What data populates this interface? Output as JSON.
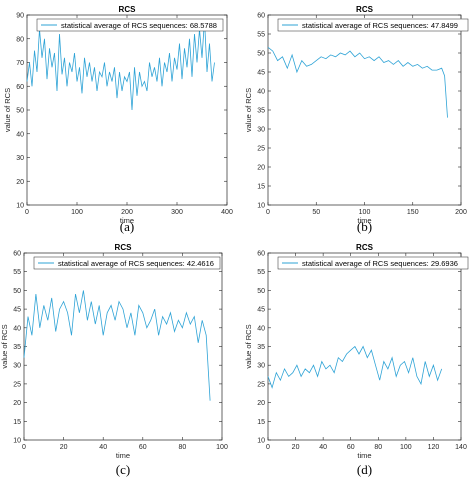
{
  "colors": {
    "line": "#2ea3d6",
    "axis": "#262626",
    "legend_border": "#262626"
  },
  "chart_data": [
    {
      "type": "line",
      "panel_label": "(a)",
      "title": "RCS",
      "xlabel": "time",
      "ylabel": "value of RCS",
      "xlim": [
        0,
        400
      ],
      "ylim": [
        10,
        90
      ],
      "xticks": [
        0,
        100,
        200,
        300,
        400
      ],
      "yticks": [
        10,
        20,
        30,
        40,
        50,
        60,
        70,
        80,
        90
      ],
      "legend": "statistical average of RCS sequences: 68.5788",
      "legend_position": "top",
      "grid": false,
      "series": [
        {
          "x": [
            0,
            5,
            10,
            15,
            20,
            25,
            30,
            35,
            40,
            45,
            50,
            55,
            60,
            65,
            70,
            75,
            80,
            85,
            90,
            95,
            100,
            105,
            110,
            115,
            120,
            125,
            130,
            135,
            140,
            145,
            150,
            155,
            160,
            165,
            170,
            175,
            180,
            185,
            190,
            195,
            200,
            205,
            210,
            215,
            220,
            225,
            230,
            235,
            240,
            245,
            250,
            255,
            260,
            265,
            270,
            275,
            280,
            285,
            290,
            295,
            300,
            305,
            310,
            315,
            320,
            325,
            330,
            335,
            340,
            345,
            350,
            355,
            360,
            365,
            370,
            375
          ],
          "y": [
            62,
            70,
            60,
            75,
            66,
            84,
            72,
            80,
            63,
            76,
            68,
            74,
            58,
            82,
            65,
            72,
            60,
            70,
            66,
            74,
            62,
            68,
            57,
            72,
            64,
            70,
            62,
            68,
            58,
            66,
            64,
            70,
            60,
            66,
            62,
            68,
            55,
            66,
            58,
            64,
            62,
            66,
            50,
            68,
            56,
            66,
            60,
            62,
            58,
            70,
            64,
            68,
            62,
            72,
            60,
            70,
            66,
            74,
            62,
            72,
            67,
            78,
            63,
            76,
            68,
            80,
            64,
            82,
            70,
            84,
            72,
            88,
            66,
            78,
            62,
            70
          ]
        }
      ]
    },
    {
      "type": "line",
      "panel_label": "(b)",
      "title": "RCS",
      "xlabel": "time",
      "ylabel": "value of RCS",
      "xlim": [
        0,
        200
      ],
      "ylim": [
        10,
        60
      ],
      "xticks": [
        0,
        50,
        100,
        150,
        200
      ],
      "yticks": [
        10,
        15,
        20,
        25,
        30,
        35,
        40,
        45,
        50,
        55,
        60
      ],
      "legend": "statistical average of RCS sequences: 47.8499",
      "legend_position": "top",
      "grid": false,
      "series": [
        {
          "x": [
            0,
            5,
            10,
            15,
            20,
            25,
            30,
            35,
            40,
            45,
            50,
            55,
            60,
            65,
            70,
            75,
            80,
            85,
            90,
            95,
            100,
            105,
            110,
            115,
            120,
            125,
            130,
            135,
            140,
            145,
            150,
            155,
            160,
            165,
            170,
            175,
            180,
            183,
            186
          ],
          "y": [
            51.5,
            50.5,
            48,
            49,
            46,
            49.5,
            45,
            48,
            46.5,
            47,
            48,
            49,
            48.5,
            49.5,
            49,
            50,
            49.5,
            50.5,
            49,
            50,
            48.5,
            49,
            48,
            49,
            47.5,
            48,
            47,
            48,
            46.5,
            47.5,
            46.5,
            47,
            46,
            46.5,
            45.5,
            45.5,
            46,
            44,
            33
          ]
        }
      ]
    },
    {
      "type": "line",
      "panel_label": "(c)",
      "title": "RCS",
      "xlabel": "time",
      "ylabel": "value of RCS",
      "xlim": [
        0,
        100
      ],
      "ylim": [
        10,
        60
      ],
      "xticks": [
        0,
        20,
        40,
        60,
        80,
        100
      ],
      "yticks": [
        10,
        15,
        20,
        25,
        30,
        35,
        40,
        45,
        50,
        55,
        60
      ],
      "legend": "statistical average of RCS sequences: 42.4616",
      "legend_position": "top",
      "grid": false,
      "series": [
        {
          "x": [
            0,
            2,
            4,
            6,
            8,
            10,
            12,
            14,
            16,
            18,
            20,
            22,
            24,
            26,
            28,
            30,
            32,
            34,
            36,
            38,
            40,
            42,
            44,
            46,
            48,
            50,
            52,
            54,
            56,
            58,
            60,
            62,
            64,
            66,
            68,
            70,
            72,
            74,
            76,
            78,
            80,
            82,
            84,
            86,
            88,
            90,
            92,
            94
          ],
          "y": [
            32,
            43,
            38,
            49,
            40,
            46,
            42,
            48,
            39,
            45,
            47,
            44,
            38,
            49,
            44,
            50,
            42,
            47,
            41,
            46,
            38,
            44,
            46,
            42,
            47,
            45,
            40,
            44,
            38,
            46,
            44,
            40,
            42,
            45,
            38,
            43,
            41,
            44,
            39,
            42,
            40,
            44,
            41,
            43,
            36,
            42,
            38,
            20.5
          ]
        }
      ]
    },
    {
      "type": "line",
      "panel_label": "(d)",
      "title": "RCS",
      "xlabel": "time",
      "ylabel": "value of RCS",
      "xlim": [
        0,
        140
      ],
      "ylim": [
        10,
        60
      ],
      "xticks": [
        0,
        20,
        40,
        60,
        80,
        100,
        120,
        140
      ],
      "yticks": [
        10,
        15,
        20,
        25,
        30,
        35,
        40,
        45,
        50,
        55,
        60
      ],
      "legend": "statistical average of RCS sequences: 29.6936",
      "legend_position": "top",
      "grid": false,
      "series": [
        {
          "x": [
            0,
            3,
            6,
            9,
            12,
            15,
            18,
            21,
            24,
            27,
            30,
            33,
            36,
            39,
            42,
            45,
            48,
            51,
            54,
            57,
            60,
            63,
            66,
            69,
            72,
            75,
            78,
            81,
            84,
            87,
            90,
            93,
            96,
            99,
            102,
            105,
            108,
            111,
            114,
            117,
            120,
            123,
            126
          ],
          "y": [
            27,
            24,
            28,
            26,
            29,
            27,
            28,
            30,
            27,
            29,
            28,
            30,
            27,
            31,
            29,
            30,
            28,
            32,
            31,
            33,
            34,
            35,
            33,
            35,
            32,
            34,
            30,
            26,
            31,
            29,
            32,
            27,
            30,
            31,
            28,
            32,
            27,
            25,
            31,
            27,
            30,
            26,
            29
          ]
        }
      ]
    }
  ]
}
